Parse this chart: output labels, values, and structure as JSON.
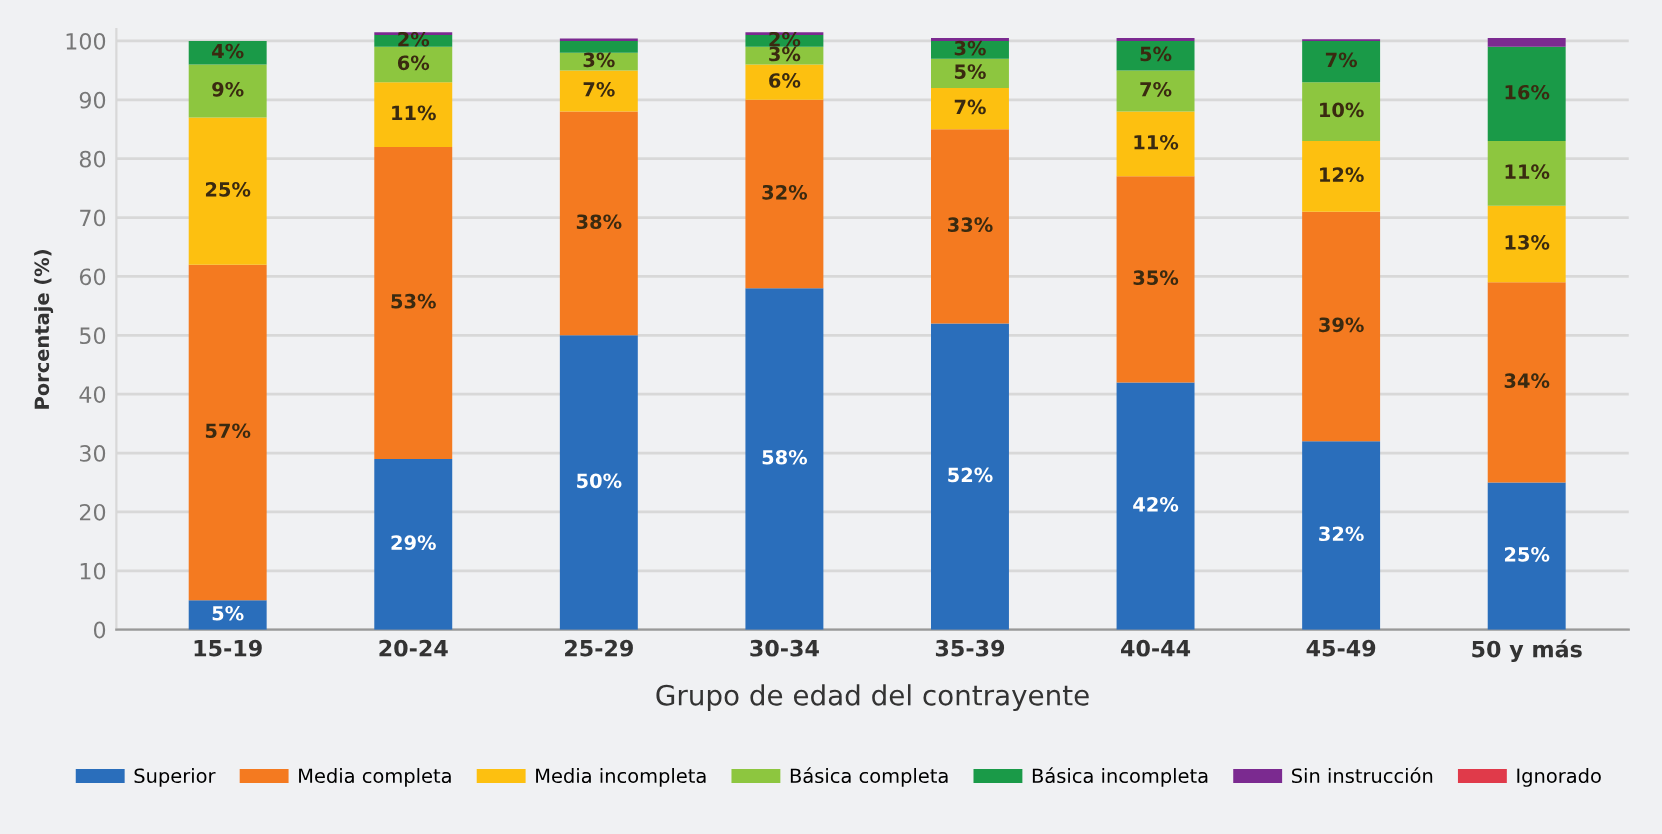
{
  "chart_data": {
    "type": "bar",
    "stacked": true,
    "xlabel": "Grupo de edad del contrayente",
    "ylabel": "Porcentaje (%)",
    "categories": [
      "15-19",
      "20-24",
      "25-29",
      "30-34",
      "35-39",
      "40-44",
      "45-49",
      "50 y más"
    ],
    "ylim": [
      0,
      102
    ],
    "yticks": [
      0,
      10,
      20,
      30,
      40,
      50,
      60,
      70,
      80,
      90,
      100
    ],
    "grid": "y",
    "legend": "bottom",
    "series": [
      {
        "name": "Superior",
        "color": "#2a6ebb",
        "values": [
          5,
          29,
          50,
          58,
          52,
          42,
          32,
          25
        ],
        "value_labels": [
          "5%",
          "29%",
          "50%",
          "58%",
          "52%",
          "42%",
          "32%",
          "25%"
        ]
      },
      {
        "name": "Media completa",
        "color": "#f47a20",
        "values": [
          57,
          53,
          38,
          32,
          33,
          35,
          39,
          34
        ],
        "value_labels": [
          "57%",
          "53%",
          "38%",
          "32%",
          "33%",
          "35%",
          "39%",
          "34%"
        ]
      },
      {
        "name": "Media incompleta",
        "color": "#fdc010",
        "values": [
          25,
          11,
          7,
          6,
          7,
          11,
          12,
          13
        ],
        "value_labels": [
          "25%",
          "11%",
          "7%",
          "6%",
          "7%",
          "11%",
          "12%",
          "13%"
        ]
      },
      {
        "name": "Básica completa",
        "color": "#8dc63f",
        "values": [
          9,
          6,
          3,
          3,
          5,
          7,
          10,
          11
        ],
        "value_labels": [
          "9%",
          "6%",
          "3%",
          "3%",
          "5%",
          "7%",
          "10%",
          "11%"
        ]
      },
      {
        "name": "Básica incompleta",
        "color": "#1a9a48",
        "values": [
          4,
          2,
          2,
          2,
          3,
          5,
          7,
          16
        ],
        "value_labels": [
          "4%",
          "2%",
          null,
          "2%",
          "3%",
          "5%",
          "7%",
          "16%"
        ]
      },
      {
        "name": "Sin instrucción",
        "color": "#7b2a90",
        "values": [
          0,
          0.5,
          0.4,
          0.5,
          0.5,
          0.5,
          0.3,
          1.5
        ],
        "value_labels": [
          null,
          null,
          null,
          null,
          null,
          null,
          null,
          null
        ]
      },
      {
        "name": "Ignorado",
        "color": "#e03a4a",
        "values": [
          0,
          0,
          0,
          0,
          0,
          0,
          0,
          0
        ],
        "value_labels": [
          null,
          null,
          null,
          null,
          null,
          null,
          null,
          null
        ]
      }
    ]
  }
}
